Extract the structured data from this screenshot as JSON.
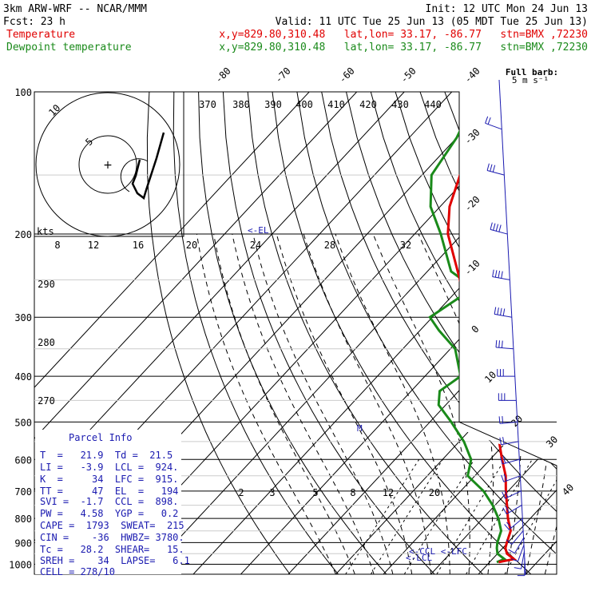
{
  "header": {
    "model": "3km ARW-WRF -- NCAR/MMM",
    "init": "Init: 12 UTC Mon 24 Jun 13",
    "fcst_label": "Fcst:",
    "fcst_value": "23 h",
    "valid": "Valid: 11 UTC Tue 25 Jun 13 (05 MDT Tue 25 Jun 13)",
    "line1_label": "Temperature",
    "line1_info": "x,y=829.80,310.48   lat,lon= 33.17, -86.77   stn=BMX ,72230",
    "line2_label": "Dewpoint temperature",
    "line2_info": "x,y=829.80,310.48   lat,lon= 33.17, -86.77   stn=BMX ,72230"
  },
  "barb_key": {
    "line1": "Full barb:",
    "line2": "5 m s⁻¹"
  },
  "hodograph": {
    "units": "kts",
    "ring_labels": [
      "5",
      "10"
    ],
    "speed_ticks": [
      "8",
      "12",
      "16",
      "20",
      "24",
      "28",
      "32"
    ]
  },
  "theta_labels": [
    "370",
    "380",
    "390",
    "400",
    "410",
    "420",
    "430",
    "440"
  ],
  "theta_left_labels": [
    "290",
    "280",
    "270"
  ],
  "mixing_ratio_labels": [
    "2",
    "3",
    "5",
    "8",
    "12",
    "20"
  ],
  "annotations": {
    "el": "<-EL",
    "m": "M",
    "lcl_a": "<-CCL <-LFC",
    "lcl_b": "<-LCL"
  },
  "parcel_info": {
    "title": "Parcel Info",
    "rows": [
      "T  =   21.9  Td =  21.5",
      "LI =   -3.9  LCL =  924.",
      "K  =     34  LFC =  915.",
      "TT =     47  EL  =   194",
      "SVI =  -1.7  CCL =  898.",
      "PW =   4.58  YGP =   0.2",
      "CAPE =  1793  SWEAT=  215",
      "CIN =    -36  HWBZ= 3780.",
      "Tc =   28.2  SHEAR=   15.",
      "SREH =    34  LAPSE=   6.1",
      "CELL = 278/10"
    ]
  },
  "colors": {
    "temperature": "#e00000",
    "dewpoint": "#1a8a1a",
    "parcel_info": "#1a1ab0",
    "barbs": "#1a1ab0"
  },
  "chart_data": {
    "type": "line",
    "chart_kind": "skew-T log-P sounding",
    "y_axis": "pressure (hPa), log scale, inverted",
    "pressure_ticks": [
      100,
      200,
      300,
      400,
      500,
      600,
      700,
      800,
      900,
      1000
    ],
    "ylim": [
      1000,
      100
    ],
    "isotherm_labels": [
      -80,
      -70,
      -60,
      -50,
      -40,
      -30,
      -20,
      -10,
      0,
      10,
      20,
      30,
      40
    ],
    "series": [
      {
        "name": "Temperature",
        "pressure": [
          990,
          975,
          950,
          925,
          900,
          850,
          800,
          750,
          700,
          650,
          600,
          550,
          500,
          450,
          400,
          350,
          300,
          250,
          200,
          175,
          150,
          125,
          110,
          100
        ],
        "values": [
          21.9,
          24.5,
          22.0,
          20.6,
          19.8,
          18.3,
          15.3,
          12.5,
          9.5,
          6.5,
          2.5,
          -1.6,
          -5.5,
          -10.5,
          -17.0,
          -24.0,
          -32.5,
          -41.5,
          -53.0,
          -58.0,
          -62.0,
          -66.0,
          -68.0,
          -71.0
        ]
      },
      {
        "name": "Dewpoint temperature",
        "pressure": [
          990,
          975,
          950,
          925,
          900,
          850,
          800,
          750,
          700,
          650,
          600,
          550,
          500,
          460,
          430,
          400,
          350,
          320,
          300,
          260,
          240,
          200,
          175,
          150,
          125,
          110,
          100
        ],
        "values": [
          21.5,
          22.5,
          20.0,
          18.8,
          17.8,
          16.3,
          13.3,
          9.5,
          4.8,
          -1.5,
          -4.0,
          -9.0,
          -15.5,
          -21.5,
          -24.0,
          -22.5,
          -29.0,
          -36.0,
          -40.5,
          -37.0,
          -45.0,
          -54.5,
          -62.0,
          -68.0,
          -70.0,
          -72.5,
          -74.0
        ]
      }
    ],
    "wind_profile": {
      "pressure": [
        970,
        940,
        910,
        880,
        850,
        800,
        750,
        700,
        650,
        600,
        550,
        500,
        450,
        400,
        350,
        300,
        250,
        200,
        150,
        120
      ],
      "direction_deg": [
        180,
        190,
        200,
        210,
        220,
        230,
        240,
        245,
        250,
        255,
        260,
        265,
        270,
        270,
        275,
        280,
        280,
        285,
        285,
        290
      ],
      "speed_ms": [
        3,
        5,
        6,
        6,
        7,
        8,
        8,
        9,
        10,
        10,
        11,
        12,
        13,
        14,
        16,
        18,
        20,
        18,
        14,
        10
      ]
    }
  }
}
